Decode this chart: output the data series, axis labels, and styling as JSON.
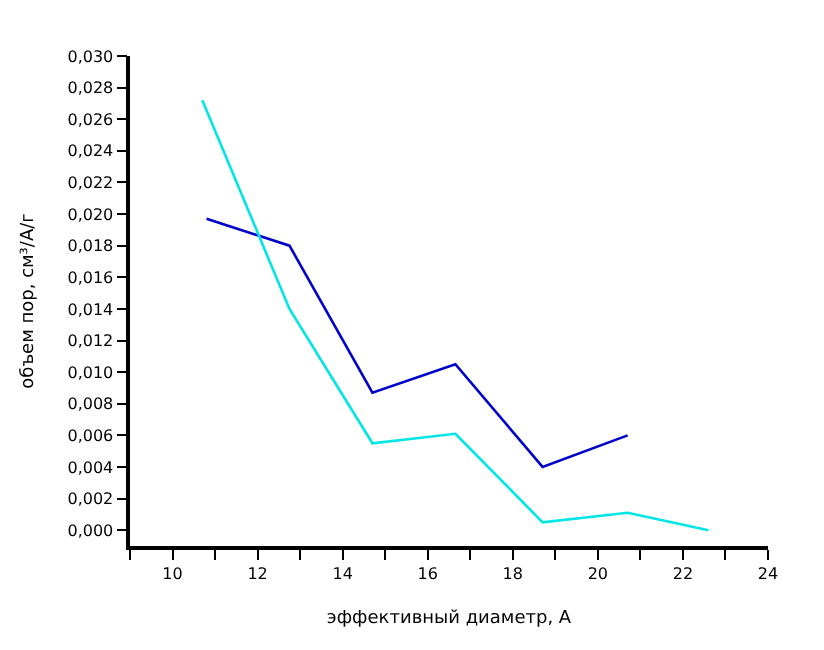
{
  "chart_data": {
    "type": "line",
    "xlabel": "эффективный диаметр, А",
    "ylabel": "объем пор, см³/А/г",
    "series": [
      {
        "color": "#0000cc",
        "x": [
          10.8,
          12.75,
          14.7,
          16.65,
          18.7,
          20.7
        ],
        "values": [
          0.0197,
          0.018,
          0.0087,
          0.0105,
          0.004,
          0.006
        ]
      },
      {
        "color": "#00e5e5",
        "x": [
          10.7,
          12.75,
          14.7,
          16.65,
          18.7,
          20.7,
          22.6
        ],
        "values": [
          0.0272,
          0.014,
          0.0055,
          0.0061,
          0.0005,
          0.0011,
          0.0
        ]
      }
    ],
    "xlim": [
      9,
      24
    ],
    "ylim": [
      -0.001,
      0.03
    ],
    "xticks": [
      {
        "value": 9,
        "label": null
      },
      {
        "value": 10,
        "label": "10"
      },
      {
        "value": 11,
        "label": null
      },
      {
        "value": 12,
        "label": "12"
      },
      {
        "value": 13,
        "label": null
      },
      {
        "value": 14,
        "label": "14"
      },
      {
        "value": 15,
        "label": null
      },
      {
        "value": 16,
        "label": "16"
      },
      {
        "value": 17,
        "label": null
      },
      {
        "value": 18,
        "label": "18"
      },
      {
        "value": 19,
        "label": null
      },
      {
        "value": 20,
        "label": "20"
      },
      {
        "value": 21,
        "label": null
      },
      {
        "value": 22,
        "label": "22"
      },
      {
        "value": 23,
        "label": null
      },
      {
        "value": 24,
        "label": "24"
      }
    ],
    "yticks": [
      {
        "value": 0.0,
        "label": "0,000"
      },
      {
        "value": 0.002,
        "label": "0,002"
      },
      {
        "value": 0.004,
        "label": "0,004"
      },
      {
        "value": 0.006,
        "label": "0,006"
      },
      {
        "value": 0.008,
        "label": "0,008"
      },
      {
        "value": 0.01,
        "label": "0,010"
      },
      {
        "value": 0.012,
        "label": "0,012"
      },
      {
        "value": 0.014,
        "label": "0,014"
      },
      {
        "value": 0.016,
        "label": "0,016"
      },
      {
        "value": 0.018,
        "label": "0,018"
      },
      {
        "value": 0.02,
        "label": "0,020"
      },
      {
        "value": 0.022,
        "label": "0,022"
      },
      {
        "value": 0.024,
        "label": "0,024"
      },
      {
        "value": 0.026,
        "label": "0,026"
      },
      {
        "value": 0.028,
        "label": "0,028"
      },
      {
        "value": 0.03,
        "label": "0,030"
      }
    ],
    "marker": "none",
    "line_style": "solid"
  }
}
